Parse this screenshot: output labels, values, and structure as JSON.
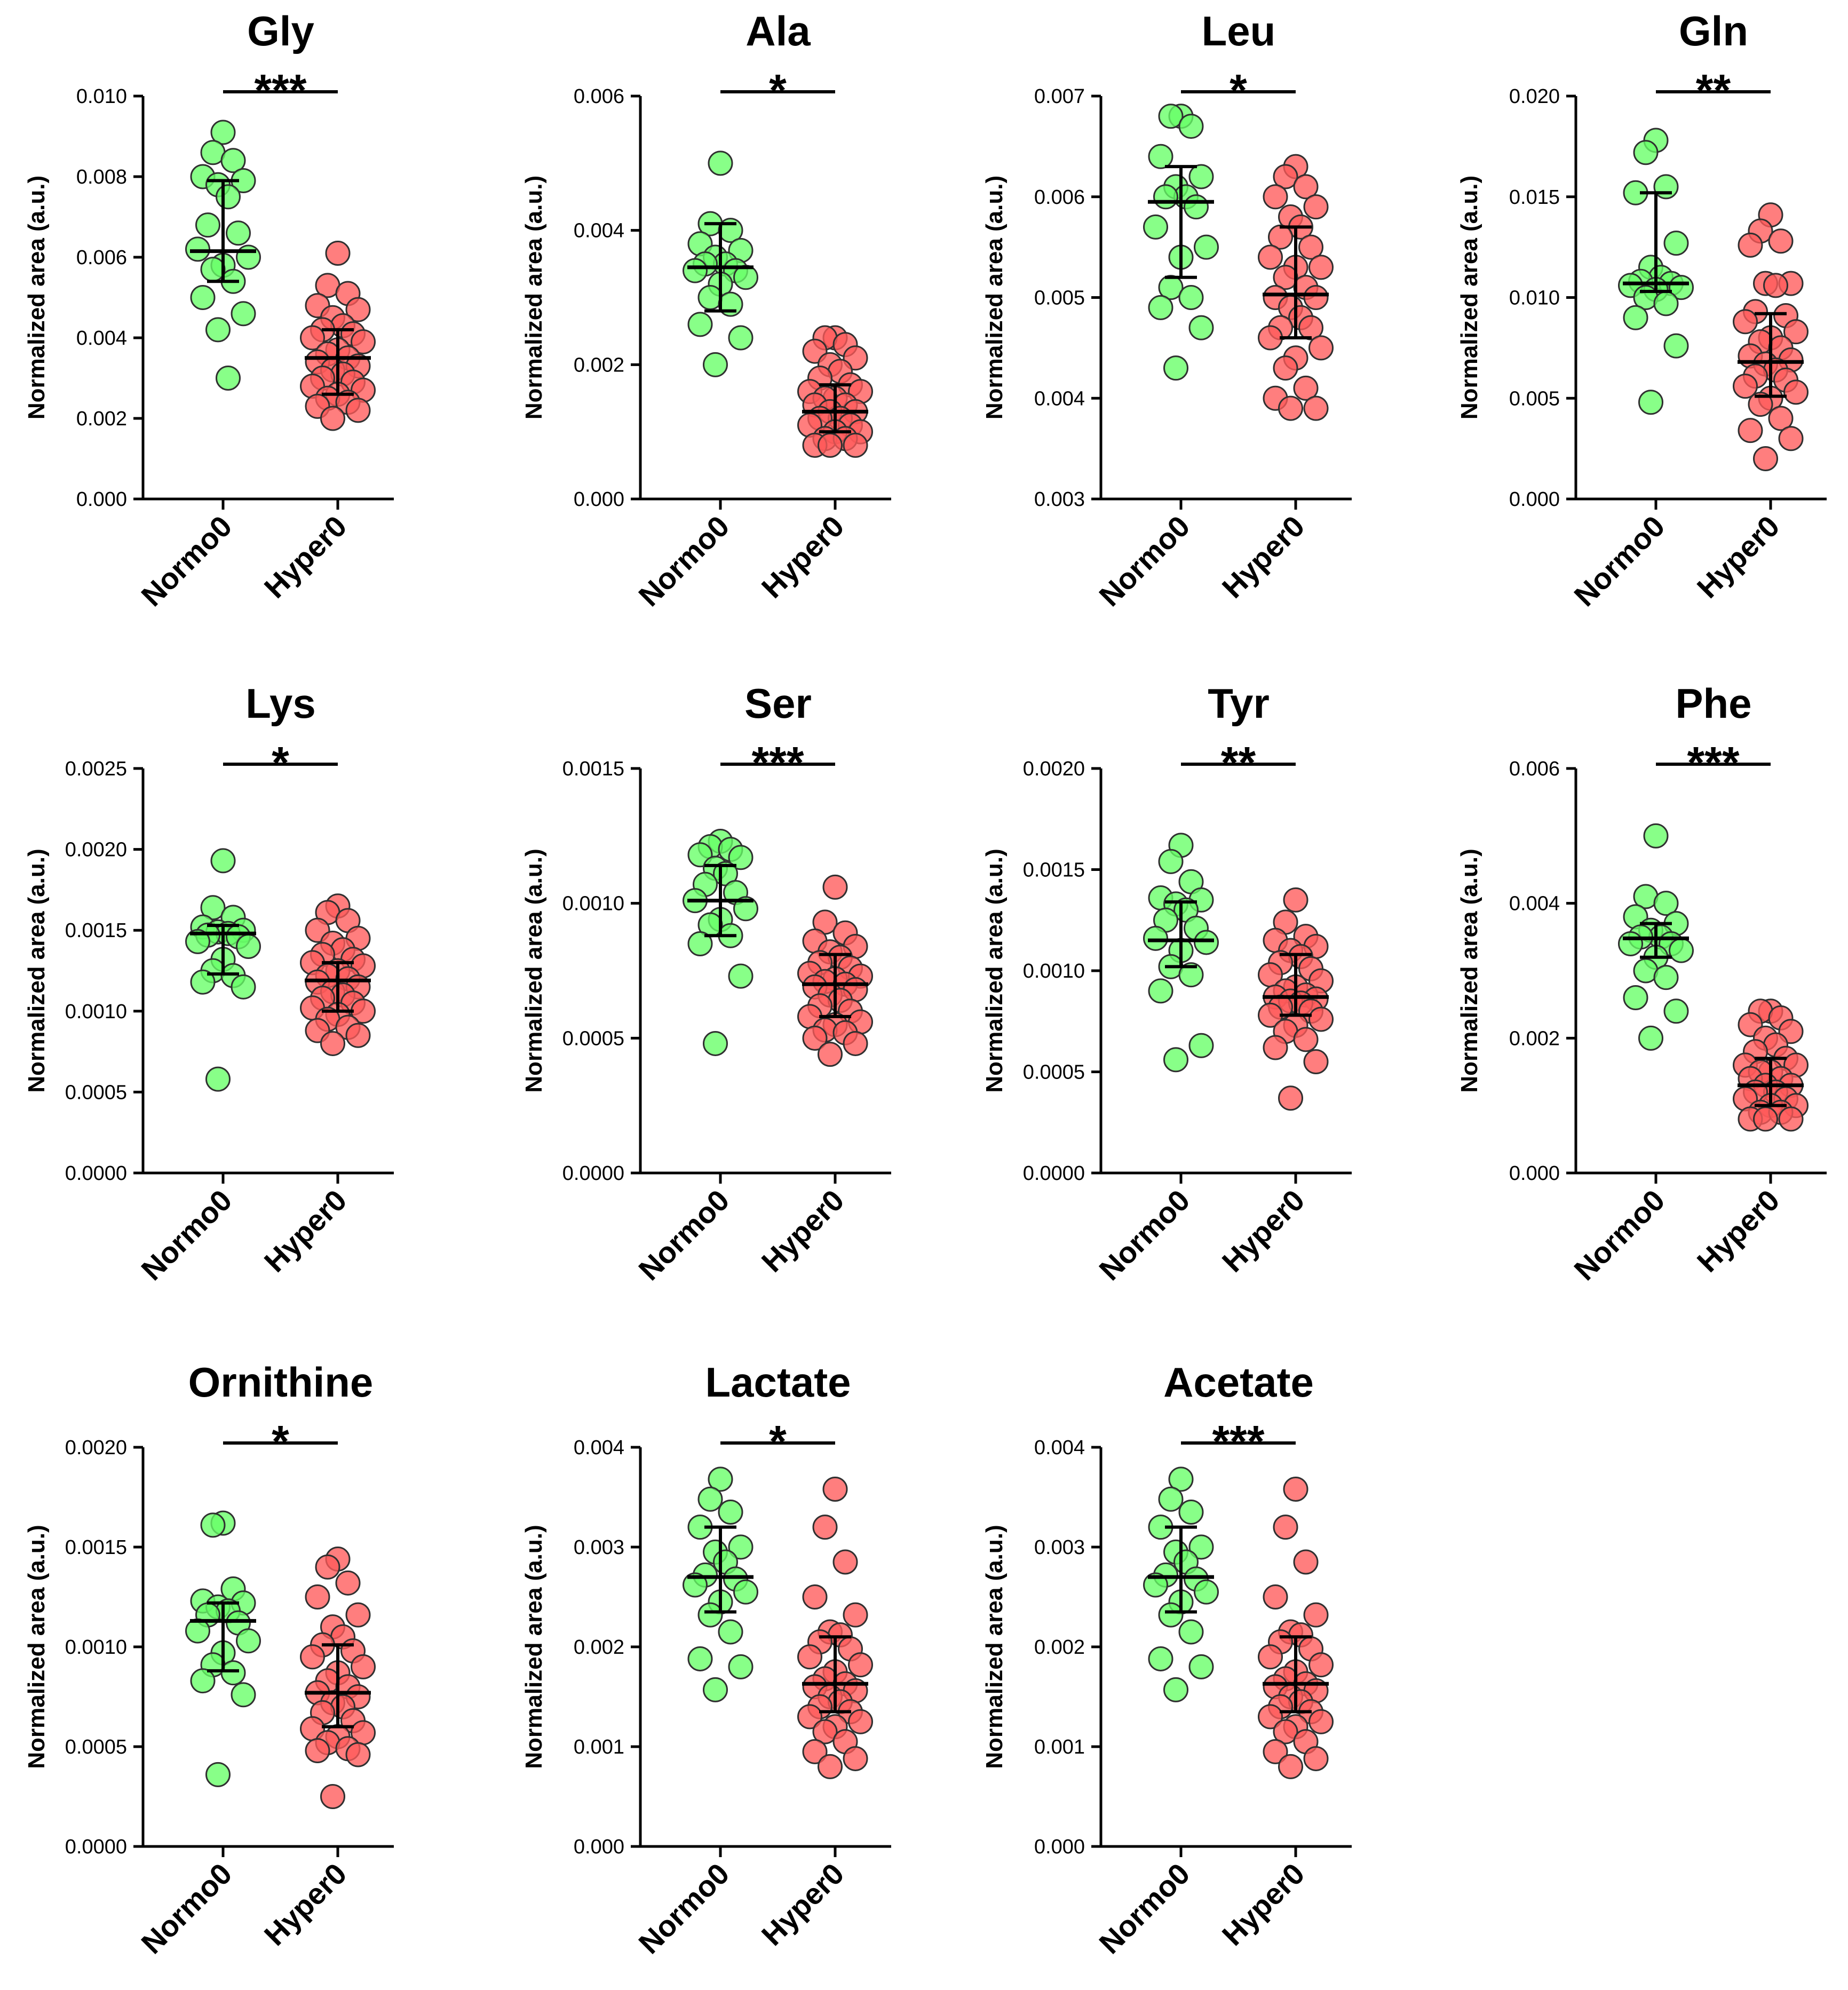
{
  "figure": {
    "groups": [
      "Normo0",
      "Hyper0"
    ],
    "ylabel": "Normalized area (a.u.)",
    "colors": {
      "Normo0": "#66ff66",
      "Hyper0": "#ff5a5a",
      "edge": "#303030",
      "axis": "#000000"
    }
  },
  "chart_data": [
    {
      "type": "scatter",
      "title": "Gly",
      "sig": "***",
      "ylim": [
        0,
        0.01
      ],
      "ticks": [
        0,
        0.002,
        0.004,
        0.006,
        0.008,
        0.01
      ],
      "ticklabels": [
        "0.000",
        "0.002",
        "0.004",
        "0.006",
        "0.008",
        "0.010"
      ],
      "series": [
        {
          "name": "Normo0",
          "median": 0.00615,
          "q1": 0.0054,
          "q3": 0.0079,
          "values": [
            0.0091,
            0.0086,
            0.0084,
            0.008,
            0.0079,
            0.0078,
            0.0075,
            0.0068,
            0.0066,
            0.0062,
            0.006,
            0.0058,
            0.0057,
            0.0054,
            0.005,
            0.0046,
            0.0042,
            0.003
          ]
        },
        {
          "name": "Hyper0",
          "median": 0.0035,
          "q1": 0.0026,
          "q3": 0.0042,
          "values": [
            0.0061,
            0.0053,
            0.0051,
            0.0048,
            0.0047,
            0.0045,
            0.0043,
            0.0042,
            0.0041,
            0.004,
            0.0039,
            0.0037,
            0.0036,
            0.0035,
            0.0034,
            0.0033,
            0.0032,
            0.0031,
            0.003,
            0.0029,
            0.0028,
            0.0027,
            0.0026,
            0.0025,
            0.0024,
            0.0023,
            0.0022,
            0.002
          ]
        }
      ]
    },
    {
      "type": "scatter",
      "title": "Ala",
      "sig": "*",
      "ylim": [
        0,
        0.006
      ],
      "ticks": [
        0,
        0.002,
        0.004,
        0.006
      ],
      "ticklabels": [
        "0.000",
        "0.002",
        "0.004",
        "0.006"
      ],
      "series": [
        {
          "name": "Normo0",
          "median": 0.00345,
          "q1": 0.0028,
          "q3": 0.0041,
          "values": [
            0.005,
            0.0041,
            0.004,
            0.0038,
            0.0037,
            0.0036,
            0.0035,
            0.0035,
            0.0034,
            0.0034,
            0.0033,
            0.0032,
            0.003,
            0.0029,
            0.0026,
            0.0024,
            0.002
          ]
        },
        {
          "name": "Hyper0",
          "median": 0.0013,
          "q1": 0.001,
          "q3": 0.0017,
          "values": [
            0.0024,
            0.0024,
            0.0023,
            0.0022,
            0.0021,
            0.002,
            0.0019,
            0.0018,
            0.0017,
            0.0016,
            0.0016,
            0.0015,
            0.0015,
            0.0014,
            0.0014,
            0.0013,
            0.0013,
            0.0012,
            0.0012,
            0.0011,
            0.0011,
            0.001,
            0.001,
            0.0009,
            0.0009,
            0.0008,
            0.0008,
            0.0008
          ]
        }
      ]
    },
    {
      "type": "scatter",
      "title": "Leu",
      "sig": "*",
      "ylim": [
        0.003,
        0.007
      ],
      "ticks": [
        0.003,
        0.004,
        0.005,
        0.006,
        0.007
      ],
      "ticklabels": [
        "0.003",
        "0.004",
        "0.005",
        "0.006",
        "0.007"
      ],
      "series": [
        {
          "name": "Normo0",
          "median": 0.00595,
          "q1": 0.0052,
          "q3": 0.0063,
          "values": [
            0.0068,
            0.0068,
            0.0067,
            0.0064,
            0.0062,
            0.0061,
            0.006,
            0.006,
            0.0059,
            0.0057,
            0.0055,
            0.0054,
            0.0051,
            0.005,
            0.0049,
            0.0047,
            0.0043
          ]
        },
        {
          "name": "Hyper0",
          "median": 0.00503,
          "q1": 0.0046,
          "q3": 0.0057,
          "values": [
            0.0063,
            0.0062,
            0.0061,
            0.006,
            0.0059,
            0.0058,
            0.0057,
            0.0056,
            0.0055,
            0.0054,
            0.0053,
            0.0053,
            0.0052,
            0.0051,
            0.005,
            0.005,
            0.0049,
            0.0048,
            0.0047,
            0.0047,
            0.0046,
            0.0045,
            0.0044,
            0.0043,
            0.0041,
            0.004,
            0.0039,
            0.0039
          ]
        }
      ]
    },
    {
      "type": "scatter",
      "title": "Gln",
      "sig": "**",
      "ylim": [
        0,
        0.02
      ],
      "ticks": [
        0,
        0.005,
        0.01,
        0.015,
        0.02
      ],
      "ticklabels": [
        "0.000",
        "0.005",
        "0.010",
        "0.015",
        "0.020"
      ],
      "series": [
        {
          "name": "Normo0",
          "median": 0.0107,
          "q1": 0.0103,
          "q3": 0.0152,
          "values": [
            0.0178,
            0.0172,
            0.0155,
            0.0152,
            0.0127,
            0.0115,
            0.011,
            0.0108,
            0.0107,
            0.0106,
            0.0105,
            0.0104,
            0.01,
            0.0097,
            0.009,
            0.0076,
            0.0048
          ]
        },
        {
          "name": "Hyper0",
          "median": 0.0068,
          "q1": 0.0051,
          "q3": 0.0092,
          "values": [
            0.0141,
            0.0133,
            0.0128,
            0.0126,
            0.0107,
            0.0107,
            0.0106,
            0.0093,
            0.0091,
            0.0088,
            0.0083,
            0.008,
            0.0078,
            0.0075,
            0.0071,
            0.0069,
            0.0067,
            0.0064,
            0.0061,
            0.0059,
            0.0056,
            0.0053,
            0.005,
            0.0047,
            0.004,
            0.0034,
            0.003,
            0.002
          ]
        }
      ]
    },
    {
      "type": "scatter",
      "title": "Lys",
      "sig": "*",
      "ylim": [
        0,
        0.0025
      ],
      "ticks": [
        0,
        0.0005,
        0.001,
        0.0015,
        0.002,
        0.0025
      ],
      "ticklabels": [
        "0.0000",
        "0.0005",
        "0.0010",
        "0.0015",
        "0.0020",
        "0.0025"
      ],
      "series": [
        {
          "name": "Normo0",
          "median": 0.00148,
          "q1": 0.00123,
          "q3": 0.00153,
          "values": [
            0.00193,
            0.00164,
            0.00158,
            0.00152,
            0.0015,
            0.00149,
            0.00148,
            0.00147,
            0.00146,
            0.00143,
            0.0014,
            0.00132,
            0.00125,
            0.00122,
            0.00118,
            0.00115,
            0.00058
          ]
        },
        {
          "name": "Hyper0",
          "median": 0.00119,
          "q1": 0.001,
          "q3": 0.0013,
          "values": [
            0.00165,
            0.00161,
            0.00156,
            0.0015,
            0.00145,
            0.00142,
            0.00138,
            0.00135,
            0.00132,
            0.0013,
            0.00128,
            0.00125,
            0.00122,
            0.0012,
            0.00118,
            0.00115,
            0.00112,
            0.0011,
            0.00108,
            0.00105,
            0.00102,
            0.001,
            0.00098,
            0.00095,
            0.0009,
            0.00088,
            0.00085,
            0.0008
          ]
        }
      ]
    },
    {
      "type": "scatter",
      "title": "Ser",
      "sig": "***",
      "ylim": [
        0,
        0.0015
      ],
      "ticks": [
        0,
        0.0005,
        0.001,
        0.0015
      ],
      "ticklabels": [
        "0.0000",
        "0.0005",
        "0.0010",
        "0.0015"
      ],
      "series": [
        {
          "name": "Normo0",
          "median": 0.00101,
          "q1": 0.00088,
          "q3": 0.00114,
          "values": [
            0.00123,
            0.00121,
            0.0012,
            0.00118,
            0.00117,
            0.00113,
            0.00111,
            0.00107,
            0.00104,
            0.00101,
            0.00098,
            0.00094,
            0.00092,
            0.00088,
            0.00085,
            0.00073,
            0.00048
          ]
        },
        {
          "name": "Hyper0",
          "median": 0.0007,
          "q1": 0.00058,
          "q3": 0.00081,
          "values": [
            0.00106,
            0.00093,
            0.00089,
            0.00086,
            0.00084,
            0.00082,
            0.0008,
            0.00078,
            0.00076,
            0.00074,
            0.00073,
            0.00072,
            0.00071,
            0.0007,
            0.00069,
            0.00068,
            0.00066,
            0.00064,
            0.00062,
            0.0006,
            0.00058,
            0.00056,
            0.00055,
            0.00053,
            0.00052,
            0.0005,
            0.00048,
            0.00044
          ]
        }
      ]
    },
    {
      "type": "scatter",
      "title": "Tyr",
      "sig": "**",
      "ylim": [
        0,
        0.002
      ],
      "ticks": [
        0,
        0.0005,
        0.001,
        0.0015,
        0.002
      ],
      "ticklabels": [
        "0.0000",
        "0.0005",
        "0.0010",
        "0.0015",
        "0.0020"
      ],
      "series": [
        {
          "name": "Normo0",
          "median": 0.00115,
          "q1": 0.00102,
          "q3": 0.00134,
          "values": [
            0.00162,
            0.00154,
            0.00144,
            0.00136,
            0.00135,
            0.00133,
            0.0013,
            0.00125,
            0.00121,
            0.00116,
            0.00114,
            0.0011,
            0.00102,
            0.00098,
            0.0009,
            0.00063,
            0.00056
          ]
        },
        {
          "name": "Hyper0",
          "median": 0.00087,
          "q1": 0.00078,
          "q3": 0.00108,
          "values": [
            0.00135,
            0.00124,
            0.00117,
            0.00115,
            0.00112,
            0.0011,
            0.00107,
            0.00104,
            0.00101,
            0.00098,
            0.00095,
            0.00092,
            0.0009,
            0.00088,
            0.00087,
            0.00086,
            0.00085,
            0.00084,
            0.00082,
            0.0008,
            0.00078,
            0.00076,
            0.00073,
            0.0007,
            0.00066,
            0.00062,
            0.00055,
            0.00037
          ]
        }
      ]
    },
    {
      "type": "scatter",
      "title": "Phe",
      "sig": "***",
      "ylim": [
        0,
        0.006
      ],
      "ticks": [
        0,
        0.002,
        0.004,
        0.006
      ],
      "ticklabels": [
        "0.000",
        "0.002",
        "0.004",
        "0.006"
      ],
      "series": [
        {
          "name": "Normo0",
          "median": 0.00348,
          "q1": 0.0032,
          "q3": 0.0037,
          "values": [
            0.005,
            0.0041,
            0.004,
            0.0038,
            0.0037,
            0.0036,
            0.0035,
            0.0035,
            0.0034,
            0.0034,
            0.0033,
            0.0032,
            0.003,
            0.0029,
            0.0026,
            0.0024,
            0.002
          ]
        },
        {
          "name": "Hyper0",
          "median": 0.0013,
          "q1": 0.001,
          "q3": 0.0017,
          "values": [
            0.0024,
            0.0024,
            0.0023,
            0.0022,
            0.0021,
            0.002,
            0.0019,
            0.0018,
            0.0017,
            0.0016,
            0.0016,
            0.0015,
            0.0015,
            0.0014,
            0.0014,
            0.0013,
            0.0013,
            0.0012,
            0.0012,
            0.0011,
            0.0011,
            0.001,
            0.001,
            0.0009,
            0.0009,
            0.0008,
            0.0008,
            0.0008
          ]
        }
      ]
    },
    {
      "type": "scatter",
      "title": "Ornithine",
      "sig": "*",
      "ylim": [
        0,
        0.002
      ],
      "ticks": [
        0,
        0.0005,
        0.001,
        0.0015,
        0.002
      ],
      "ticklabels": [
        "0.0000",
        "0.0005",
        "0.0010",
        "0.0015",
        "0.0020"
      ],
      "series": [
        {
          "name": "Normo0",
          "median": 0.00113,
          "q1": 0.00088,
          "q3": 0.00122,
          "values": [
            0.00162,
            0.00161,
            0.00129,
            0.00123,
            0.00122,
            0.0012,
            0.00118,
            0.00116,
            0.00112,
            0.00108,
            0.00103,
            0.00097,
            0.00091,
            0.00087,
            0.00083,
            0.00076,
            0.00036
          ]
        },
        {
          "name": "Hyper0",
          "median": 0.00077,
          "q1": 0.0006,
          "q3": 0.00101,
          "values": [
            0.00144,
            0.0014,
            0.00132,
            0.00125,
            0.00116,
            0.0011,
            0.00105,
            0.00101,
            0.00098,
            0.00095,
            0.0009,
            0.00087,
            0.00083,
            0.0008,
            0.00077,
            0.00075,
            0.00072,
            0.0007,
            0.00067,
            0.00063,
            0.00059,
            0.00057,
            0.00055,
            0.00052,
            0.00049,
            0.00048,
            0.00046,
            0.00025
          ]
        }
      ]
    },
    {
      "type": "scatter",
      "title": "Lactate",
      "sig": "*",
      "ylim": [
        0,
        0.004
      ],
      "ticks": [
        0,
        0.001,
        0.002,
        0.003,
        0.004
      ],
      "ticklabels": [
        "0.000",
        "0.001",
        "0.002",
        "0.003",
        "0.004"
      ],
      "series": [
        {
          "name": "Normo0",
          "median": 0.0027,
          "q1": 0.00235,
          "q3": 0.0032,
          "values": [
            0.00368,
            0.00348,
            0.00335,
            0.0032,
            0.003,
            0.00295,
            0.00285,
            0.00272,
            0.00268,
            0.00262,
            0.00255,
            0.00245,
            0.00232,
            0.00215,
            0.00188,
            0.0018,
            0.00157
          ]
        },
        {
          "name": "Hyper0",
          "median": 0.00163,
          "q1": 0.00135,
          "q3": 0.0021,
          "values": [
            0.00358,
            0.0032,
            0.00285,
            0.0025,
            0.00232,
            0.00215,
            0.00212,
            0.00205,
            0.00198,
            0.0019,
            0.00182,
            0.00175,
            0.00168,
            0.00163,
            0.0016,
            0.00156,
            0.0015,
            0.00145,
            0.0014,
            0.00135,
            0.0013,
            0.00125,
            0.0012,
            0.00115,
            0.00105,
            0.00095,
            0.00088,
            0.0008
          ]
        }
      ]
    },
    {
      "type": "scatter",
      "title": "Acetate",
      "sig": "***",
      "ylim": [
        0,
        0.004
      ],
      "ticks": [
        0,
        0.001,
        0.002,
        0.003,
        0.004
      ],
      "ticklabels": [
        "0.000",
        "0.001",
        "0.002",
        "0.003",
        "0.004"
      ],
      "series": [
        {
          "name": "Normo0",
          "median": 0.0027,
          "q1": 0.00235,
          "q3": 0.0032,
          "values": [
            0.00368,
            0.00348,
            0.00335,
            0.0032,
            0.003,
            0.00295,
            0.00285,
            0.00272,
            0.00268,
            0.00262,
            0.00255,
            0.00245,
            0.00232,
            0.00215,
            0.00188,
            0.0018,
            0.00157
          ]
        },
        {
          "name": "Hyper0",
          "median": 0.00163,
          "q1": 0.00135,
          "q3": 0.0021,
          "values": [
            0.00358,
            0.0032,
            0.00285,
            0.0025,
            0.00232,
            0.00215,
            0.00212,
            0.00205,
            0.00198,
            0.0019,
            0.00182,
            0.00175,
            0.00168,
            0.00163,
            0.0016,
            0.00156,
            0.0015,
            0.00145,
            0.0014,
            0.00135,
            0.0013,
            0.00125,
            0.0012,
            0.00115,
            0.00105,
            0.00095,
            0.00088,
            0.0008
          ]
        }
      ]
    }
  ]
}
